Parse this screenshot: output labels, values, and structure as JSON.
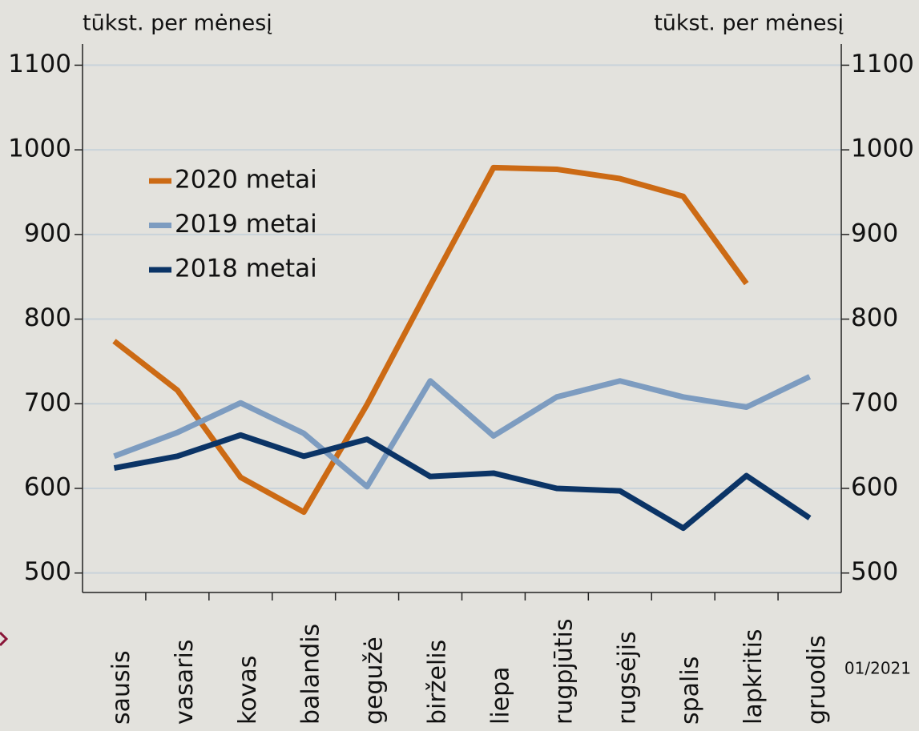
{
  "chart_data": {
    "type": "line",
    "y_label_left": "tūkst. per mėnesį",
    "y_label_right": "tūkst. per mėnesį",
    "annotation": "01/2021",
    "categories": [
      "sausis",
      "vasaris",
      "kovas",
      "balandis",
      "gegužė",
      "birželis",
      "liepa",
      "rugpjūtis",
      "rugsėjis",
      "spalis",
      "lapkritis",
      "gruodis"
    ],
    "series": [
      {
        "name": "2020 metai",
        "color": "#cc6a14",
        "values": [
          774,
          716,
          613,
          572,
          699,
          840,
          979,
          977,
          966,
          945,
          842,
          null
        ]
      },
      {
        "name": "2019 metai",
        "color": "#7d9cc0",
        "values": [
          638,
          666,
          701,
          665,
          602,
          727,
          662,
          708,
          727,
          708,
          696,
          732
        ]
      },
      {
        "name": "2018 metai",
        "color": "#0b3466",
        "values": [
          624,
          638,
          663,
          638,
          658,
          614,
          618,
          600,
          597,
          553,
          615,
          565
        ]
      }
    ],
    "ylim": [
      477,
      1125
    ],
    "yticks": [
      500,
      600,
      700,
      800,
      900,
      1000,
      1100
    ],
    "y2lim": [
      477,
      1125
    ],
    "y2ticks": [
      500,
      600,
      700,
      800,
      900,
      1000,
      1100
    ],
    "grid": true
  }
}
